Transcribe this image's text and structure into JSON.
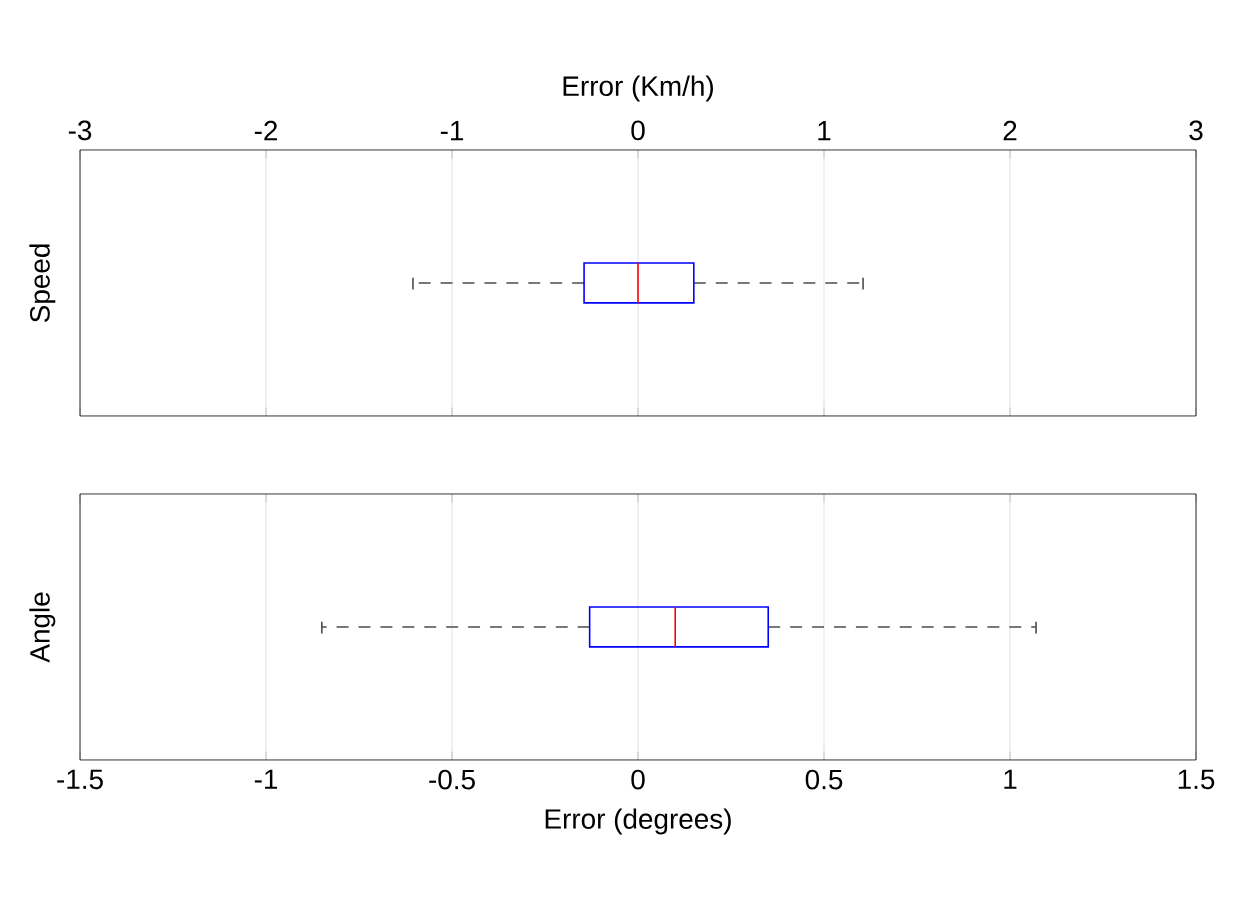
{
  "chart_data": [
    {
      "type": "box",
      "orientation": "horizontal",
      "xlabel": "Error (Km/h)",
      "ylabel": "Speed",
      "categories": [
        null
      ],
      "xlim": [
        -3,
        3
      ],
      "xticks": [
        -3,
        -2,
        -1,
        0,
        1,
        2,
        3
      ],
      "grid": "x",
      "tick_labels": "x",
      "series": [
        {
          "color": "#0000ff",
          "boxes": [
            {
              "low": -1.21,
              "q1": -0.29,
              "median": 0,
              "q3": 0.3,
              "high": 1.21
            }
          ]
        }
      ]
    },
    {
      "type": "box",
      "orientation": "horizontal",
      "xlabel": "Error (degrees)",
      "ylabel": "Angle",
      "categories": [
        null
      ],
      "xlim": [
        -1.5,
        1.5
      ],
      "xticks": [
        -1.5,
        -1,
        -0.5,
        0,
        0.5,
        1,
        1.5
      ],
      "grid": "x",
      "tick_labels": "x",
      "series": [
        {
          "color": "#0000ff",
          "boxes": [
            {
              "low": -0.85,
              "q1": -0.13,
              "median": 0.1,
              "q3": 0.35,
              "high": 1.07
            }
          ]
        }
      ]
    }
  ]
}
